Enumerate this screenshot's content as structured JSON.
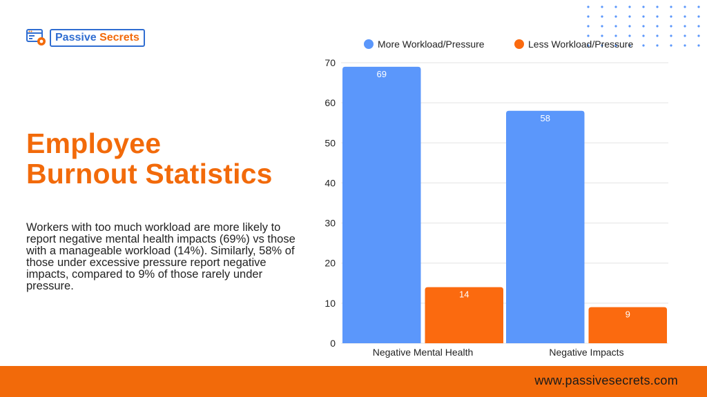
{
  "brand": {
    "name_part1": "Passive",
    "name_part2": "Secrets",
    "logo_icon": "browser-gear-icon",
    "colors": {
      "blue": "#2f6dd1",
      "orange": "#f26a0a"
    }
  },
  "headline": {
    "line1": "Employee",
    "line2": "Burnout Statistics"
  },
  "description": "Workers with too much workload are more likely to report negative mental health impacts (69%) vs those with a manageable workload (14%). Similarly, 58% of those under excessive pressure report negative impacts, compared to 9% of those rarely under pressure.",
  "footer": {
    "url": "www.passivesecrets.com"
  },
  "chart_data": {
    "type": "bar",
    "title": "",
    "xlabel": "",
    "ylabel": "",
    "categories": [
      "Negative Mental Health",
      "Negative Impacts"
    ],
    "series": [
      {
        "name": "More Workload/Pressure",
        "color": "#5b97fb",
        "values": [
          69,
          58
        ]
      },
      {
        "name": "Less Workload/Pressure",
        "color": "#fb6a0f",
        "values": [
          14,
          9
        ]
      }
    ],
    "ylim": [
      0,
      70
    ],
    "yticks": [
      0,
      10,
      20,
      30,
      40,
      50,
      60,
      70
    ],
    "grid": true,
    "legend": "top"
  }
}
